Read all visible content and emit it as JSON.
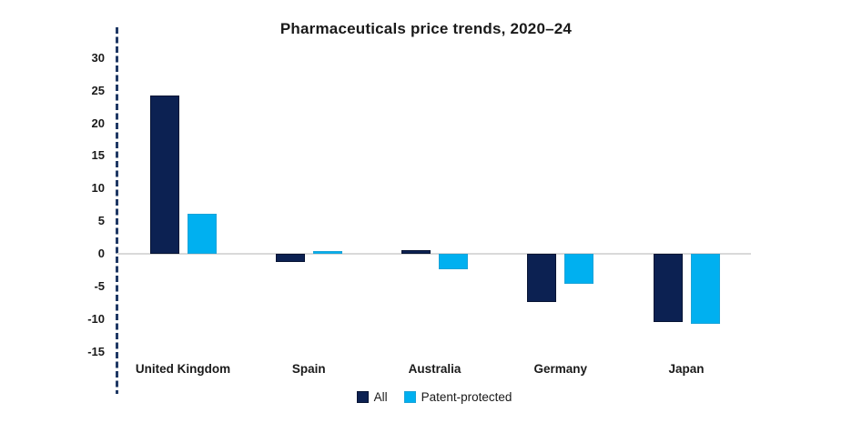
{
  "figure": {
    "title": "Pharmaceuticals price trends, 2020–24"
  },
  "chart_data": {
    "type": "bar",
    "title": "Pharmaceuticals price trends, 2020–24",
    "categories": [
      "United Kingdom",
      "Spain",
      "Australia",
      "Germany",
      "Japan"
    ],
    "series": [
      {
        "name": "All",
        "color": "#0c2152",
        "border_color": "#071434",
        "values": [
          24.3,
          -1.3,
          0.5,
          -7.4,
          -10.5
        ]
      },
      {
        "name": "Patent-protected",
        "color": "#00b0f0",
        "border_color": "#1aa3d8",
        "values": [
          6.1,
          0.4,
          -2.4,
          -4.6,
          -10.7
        ]
      }
    ],
    "xlabel": "",
    "ylabel": "",
    "ylim": [
      -17,
      34
    ],
    "yticks": [
      30,
      25,
      20,
      15,
      10,
      5,
      0,
      -5,
      -10,
      -15
    ],
    "grid": false,
    "zero_line": true,
    "legend_position": "bottom",
    "axis_style": {
      "y_axis_line": "dashed",
      "y_axis_color": "#1f3864",
      "zero_line_color": "#d9d9d9"
    }
  }
}
